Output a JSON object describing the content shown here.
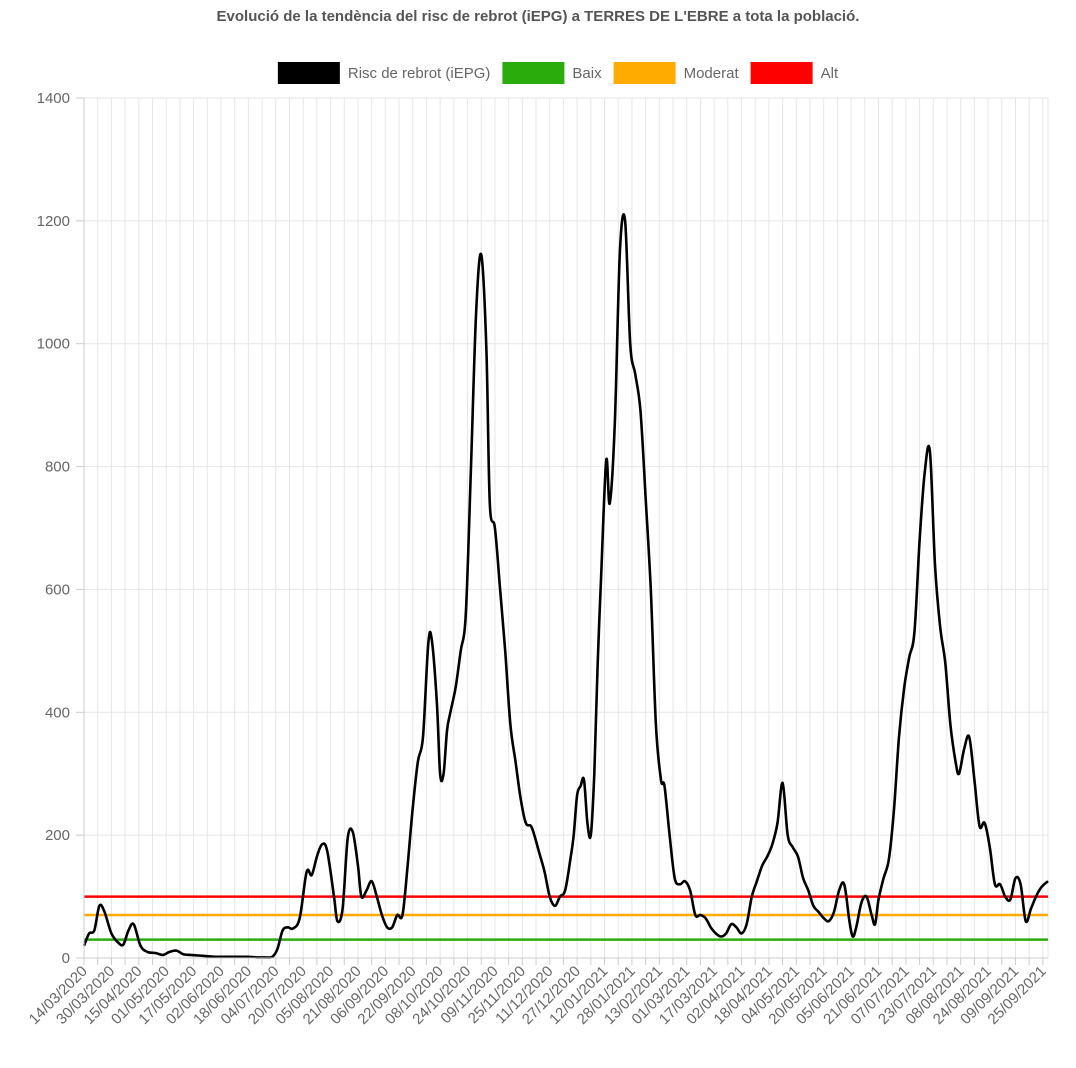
{
  "chart_data": {
    "type": "line",
    "title": "Evolució de la tendència del risc de rebrot (iEPG) a TERRES DE L'EBRE a tota la població.",
    "xlabel": "",
    "ylabel": "",
    "ylim": [
      0,
      1400
    ],
    "yticks": [
      0,
      200,
      400,
      600,
      800,
      1000,
      1200,
      1400
    ],
    "grid": true,
    "legend_position": "top",
    "x_start": "2020-03-14",
    "x_end": "2021-09-28",
    "x_tick_labels": [
      "14/03/2020",
      "30/03/2020",
      "15/04/2020",
      "01/05/2020",
      "17/05/2020",
      "02/06/2020",
      "18/06/2020",
      "04/07/2020",
      "20/07/2020",
      "05/08/2020",
      "21/08/2020",
      "06/09/2020",
      "22/09/2020",
      "08/10/2020",
      "24/10/2020",
      "09/11/2020",
      "25/11/2020",
      "11/12/2020",
      "27/12/2020",
      "12/01/2021",
      "28/01/2021",
      "13/02/2021",
      "01/03/2021",
      "17/03/2021",
      "02/04/2021",
      "18/04/2021",
      "04/05/2021",
      "20/05/2021",
      "05/06/2021",
      "21/06/2021",
      "07/07/2021",
      "23/07/2021",
      "08/08/2021",
      "24/08/2021",
      "09/09/2021",
      "25/09/2021"
    ],
    "legend": [
      {
        "name": "Risc de rebrot (iEPG)",
        "color": "#000000"
      },
      {
        "name": "Baix",
        "color": "#2aac0c"
      },
      {
        "name": "Moderat",
        "color": "#ffab00"
      },
      {
        "name": "Alt",
        "color": "#ff0000"
      }
    ],
    "thresholds": [
      {
        "name": "Baix",
        "value": 30,
        "color": "#2aac0c"
      },
      {
        "name": "Moderat",
        "value": 70,
        "color": "#ffab00"
      },
      {
        "name": "Alt",
        "value": 100,
        "color": "#ff0000"
      }
    ],
    "series": [
      {
        "name": "Risc de rebrot (iEPG)",
        "color": "#000000",
        "points": [
          [
            "2020-03-14",
            20
          ],
          [
            "2020-03-17",
            40
          ],
          [
            "2020-03-20",
            45
          ],
          [
            "2020-03-23",
            85
          ],
          [
            "2020-03-26",
            75
          ],
          [
            "2020-03-30",
            40
          ],
          [
            "2020-04-03",
            25
          ],
          [
            "2020-04-06",
            22
          ],
          [
            "2020-04-09",
            45
          ],
          [
            "2020-04-12",
            55
          ],
          [
            "2020-04-16",
            20
          ],
          [
            "2020-04-20",
            10
          ],
          [
            "2020-04-25",
            8
          ],
          [
            "2020-04-29",
            5
          ],
          [
            "2020-05-03",
            10
          ],
          [
            "2020-05-07",
            12
          ],
          [
            "2020-05-11",
            6
          ],
          [
            "2020-05-15",
            5
          ],
          [
            "2020-05-20",
            4
          ],
          [
            "2020-05-25",
            3
          ],
          [
            "2020-05-30",
            2
          ],
          [
            "2020-06-04",
            2
          ],
          [
            "2020-06-09",
            2
          ],
          [
            "2020-06-14",
            2
          ],
          [
            "2020-06-18",
            2
          ],
          [
            "2020-06-23",
            1
          ],
          [
            "2020-06-28",
            1
          ],
          [
            "2020-07-02",
            2
          ],
          [
            "2020-07-05",
            15
          ],
          [
            "2020-07-08",
            45
          ],
          [
            "2020-07-11",
            50
          ],
          [
            "2020-07-14",
            48
          ],
          [
            "2020-07-18",
            65
          ],
          [
            "2020-07-22",
            140
          ],
          [
            "2020-07-25",
            135
          ],
          [
            "2020-07-28",
            165
          ],
          [
            "2020-07-31",
            185
          ],
          [
            "2020-08-03",
            175
          ],
          [
            "2020-08-07",
            100
          ],
          [
            "2020-08-09",
            60
          ],
          [
            "2020-08-12",
            80
          ],
          [
            "2020-08-15",
            195
          ],
          [
            "2020-08-18",
            205
          ],
          [
            "2020-08-21",
            150
          ],
          [
            "2020-08-23",
            100
          ],
          [
            "2020-08-26",
            110
          ],
          [
            "2020-08-29",
            125
          ],
          [
            "2020-09-01",
            100
          ],
          [
            "2020-09-04",
            70
          ],
          [
            "2020-09-07",
            50
          ],
          [
            "2020-09-10",
            50
          ],
          [
            "2020-09-13",
            70
          ],
          [
            "2020-09-16",
            70
          ],
          [
            "2020-09-19",
            150
          ],
          [
            "2020-09-22",
            245
          ],
          [
            "2020-09-25",
            320
          ],
          [
            "2020-09-28",
            360
          ],
          [
            "2020-10-01",
            510
          ],
          [
            "2020-10-03",
            520
          ],
          [
            "2020-10-06",
            420
          ],
          [
            "2020-10-08",
            300
          ],
          [
            "2020-10-10",
            300
          ],
          [
            "2020-10-12",
            370
          ],
          [
            "2020-10-14",
            400
          ],
          [
            "2020-10-17",
            440
          ],
          [
            "2020-10-20",
            500
          ],
          [
            "2020-10-23",
            560
          ],
          [
            "2020-10-26",
            800
          ],
          [
            "2020-10-29",
            1050
          ],
          [
            "2020-11-01",
            1145
          ],
          [
            "2020-11-04",
            990
          ],
          [
            "2020-11-06",
            740
          ],
          [
            "2020-11-09",
            700
          ],
          [
            "2020-11-12",
            600
          ],
          [
            "2020-11-15",
            500
          ],
          [
            "2020-11-18",
            380
          ],
          [
            "2020-11-21",
            320
          ],
          [
            "2020-11-24",
            260
          ],
          [
            "2020-11-27",
            220
          ],
          [
            "2020-11-30",
            215
          ],
          [
            "2020-12-02",
            200
          ],
          [
            "2020-12-05",
            170
          ],
          [
            "2020-12-08",
            140
          ],
          [
            "2020-12-11",
            100
          ],
          [
            "2020-12-14",
            85
          ],
          [
            "2020-12-17",
            100
          ],
          [
            "2020-12-20",
            110
          ],
          [
            "2020-12-23",
            160
          ],
          [
            "2020-12-25",
            200
          ],
          [
            "2020-12-27",
            265
          ],
          [
            "2020-12-29",
            280
          ],
          [
            "2020-12-31",
            290
          ],
          [
            "2021-01-02",
            220
          ],
          [
            "2021-01-04",
            200
          ],
          [
            "2021-01-06",
            300
          ],
          [
            "2021-01-08",
            480
          ],
          [
            "2021-01-10",
            620
          ],
          [
            "2021-01-13",
            810
          ],
          [
            "2021-01-15",
            740
          ],
          [
            "2021-01-18",
            870
          ],
          [
            "2021-01-21",
            1150
          ],
          [
            "2021-01-24",
            1200
          ],
          [
            "2021-01-27",
            1000
          ],
          [
            "2021-01-30",
            950
          ],
          [
            "2021-02-02",
            890
          ],
          [
            "2021-02-05",
            750
          ],
          [
            "2021-02-08",
            600
          ],
          [
            "2021-02-11",
            380
          ],
          [
            "2021-02-14",
            290
          ],
          [
            "2021-02-16",
            280
          ],
          [
            "2021-02-19",
            200
          ],
          [
            "2021-02-22",
            130
          ],
          [
            "2021-02-25",
            120
          ],
          [
            "2021-02-28",
            125
          ],
          [
            "2021-03-03",
            110
          ],
          [
            "2021-03-06",
            70
          ],
          [
            "2021-03-09",
            70
          ],
          [
            "2021-03-12",
            65
          ],
          [
            "2021-03-15",
            50
          ],
          [
            "2021-03-18",
            40
          ],
          [
            "2021-03-21",
            35
          ],
          [
            "2021-03-24",
            40
          ],
          [
            "2021-03-27",
            55
          ],
          [
            "2021-03-30",
            50
          ],
          [
            "2021-04-02",
            40
          ],
          [
            "2021-04-05",
            55
          ],
          [
            "2021-04-08",
            100
          ],
          [
            "2021-04-11",
            125
          ],
          [
            "2021-04-14",
            150
          ],
          [
            "2021-04-17",
            165
          ],
          [
            "2021-04-20",
            185
          ],
          [
            "2021-04-23",
            220
          ],
          [
            "2021-04-26",
            285
          ],
          [
            "2021-04-29",
            200
          ],
          [
            "2021-05-02",
            180
          ],
          [
            "2021-05-05",
            165
          ],
          [
            "2021-05-08",
            130
          ],
          [
            "2021-05-11",
            110
          ],
          [
            "2021-05-14",
            85
          ],
          [
            "2021-05-17",
            75
          ],
          [
            "2021-05-20",
            65
          ],
          [
            "2021-05-23",
            60
          ],
          [
            "2021-05-26",
            75
          ],
          [
            "2021-05-29",
            110
          ],
          [
            "2021-06-01",
            120
          ],
          [
            "2021-06-04",
            60
          ],
          [
            "2021-06-06",
            35
          ],
          [
            "2021-06-08",
            50
          ],
          [
            "2021-06-11",
            90
          ],
          [
            "2021-06-14",
            100
          ],
          [
            "2021-06-17",
            70
          ],
          [
            "2021-06-19",
            55
          ],
          [
            "2021-06-21",
            95
          ],
          [
            "2021-06-24",
            130
          ],
          [
            "2021-06-27",
            160
          ],
          [
            "2021-06-30",
            240
          ],
          [
            "2021-07-03",
            360
          ],
          [
            "2021-07-06",
            440
          ],
          [
            "2021-07-09",
            490
          ],
          [
            "2021-07-12",
            530
          ],
          [
            "2021-07-15",
            680
          ],
          [
            "2021-07-18",
            790
          ],
          [
            "2021-07-21",
            825
          ],
          [
            "2021-07-24",
            640
          ],
          [
            "2021-07-27",
            540
          ],
          [
            "2021-07-30",
            480
          ],
          [
            "2021-08-02",
            380
          ],
          [
            "2021-08-05",
            320
          ],
          [
            "2021-08-07",
            300
          ],
          [
            "2021-08-10",
            340
          ],
          [
            "2021-08-13",
            360
          ],
          [
            "2021-08-16",
            290
          ],
          [
            "2021-08-19",
            215
          ],
          [
            "2021-08-22",
            220
          ],
          [
            "2021-08-25",
            180
          ],
          [
            "2021-08-28",
            120
          ],
          [
            "2021-08-31",
            120
          ],
          [
            "2021-09-03",
            100
          ],
          [
            "2021-09-06",
            95
          ],
          [
            "2021-09-09",
            130
          ],
          [
            "2021-09-12",
            120
          ],
          [
            "2021-09-15",
            60
          ],
          [
            "2021-09-18",
            80
          ],
          [
            "2021-09-21",
            100
          ],
          [
            "2021-09-24",
            115
          ],
          [
            "2021-09-28",
            125
          ]
        ]
      }
    ]
  }
}
